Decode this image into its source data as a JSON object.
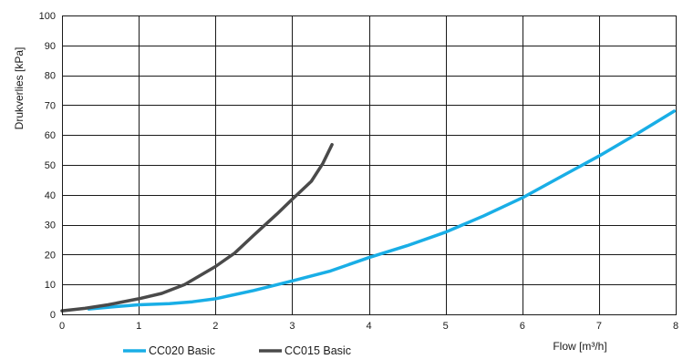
{
  "chart_data": {
    "type": "line",
    "xlabel": "Flow [m³/h]",
    "ylabel": "Drukverlies [kPa]",
    "xlim": [
      0,
      8
    ],
    "ylim": [
      0,
      100
    ],
    "xticks": [
      "0",
      "1",
      "2",
      "3",
      "4",
      "5",
      "6",
      "7",
      "8"
    ],
    "yticks": [
      "0",
      "10",
      "20",
      "30",
      "40",
      "50",
      "60",
      "70",
      "80",
      "90",
      "100"
    ],
    "grid": true,
    "legend_position": "bottom-left",
    "series": [
      {
        "name": "CC020 Basic",
        "color": "#19aee6",
        "points": [
          [
            0.35,
            1.8
          ],
          [
            0.7,
            2.6
          ],
          [
            1.0,
            3.2
          ],
          [
            1.4,
            3.6
          ],
          [
            1.7,
            4.2
          ],
          [
            2.0,
            5.2
          ],
          [
            2.5,
            8.0
          ],
          [
            3.0,
            11.2
          ],
          [
            3.5,
            14.5
          ],
          [
            4.0,
            19.0
          ],
          [
            4.5,
            23.0
          ],
          [
            5.0,
            27.5
          ],
          [
            5.5,
            33.0
          ],
          [
            6.0,
            39.0
          ],
          [
            6.5,
            46.0
          ],
          [
            7.0,
            53.0
          ],
          [
            7.5,
            60.5
          ],
          [
            7.98,
            68.0
          ]
        ]
      },
      {
        "name": "CC015 Basic",
        "color": "#4a4a4a",
        "points": [
          [
            0.0,
            1.2
          ],
          [
            0.3,
            2.0
          ],
          [
            0.6,
            3.2
          ],
          [
            1.0,
            5.2
          ],
          [
            1.3,
            7.0
          ],
          [
            1.6,
            10.0
          ],
          [
            2.0,
            16.0
          ],
          [
            2.25,
            20.5
          ],
          [
            2.5,
            26.5
          ],
          [
            2.8,
            33.5
          ],
          [
            3.0,
            38.5
          ],
          [
            3.25,
            44.5
          ],
          [
            3.4,
            50.5
          ],
          [
            3.52,
            56.8
          ]
        ]
      }
    ]
  }
}
